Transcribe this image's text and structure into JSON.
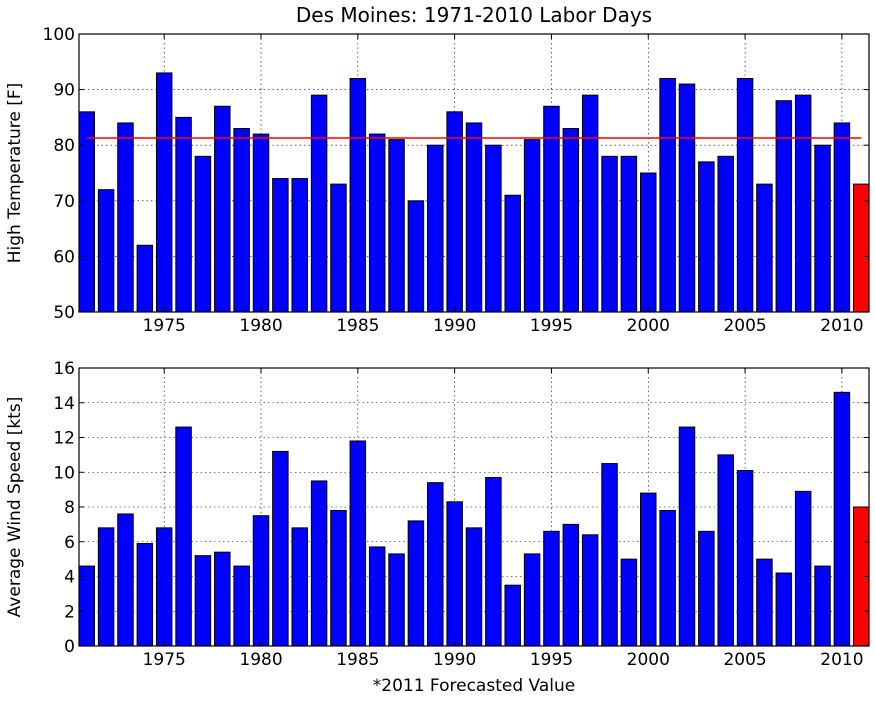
{
  "title": "Des Moines: 1971-2010 Labor Days",
  "footnote": "*2011 Forecasted Value",
  "colors": {
    "bar": "#0000ff",
    "forecast": "#ff0000",
    "mean_line": "#ff0000",
    "edge": "#000000"
  },
  "chart_data": [
    {
      "type": "bar",
      "ylabel": "High Temperature [F]",
      "xlabel": "",
      "ylim": [
        50,
        100
      ],
      "xlim": [
        1970.6,
        2011.4
      ],
      "grid": true,
      "yticks": [
        "50",
        "60",
        "70",
        "80",
        "90",
        "100"
      ],
      "xticks": [
        "1975",
        "1980",
        "1985",
        "1990",
        "1995",
        "2000",
        "2005",
        "2010"
      ],
      "x": [
        1971,
        1972,
        1973,
        1974,
        1975,
        1976,
        1977,
        1978,
        1979,
        1980,
        1981,
        1982,
        1983,
        1984,
        1985,
        1986,
        1987,
        1988,
        1989,
        1990,
        1991,
        1992,
        1993,
        1994,
        1995,
        1996,
        1997,
        1998,
        1999,
        2000,
        2001,
        2002,
        2003,
        2004,
        2005,
        2006,
        2007,
        2008,
        2009,
        2010
      ],
      "values": [
        86,
        72,
        84,
        62,
        93,
        85,
        78,
        87,
        83,
        82,
        74,
        74,
        89,
        73,
        92,
        82,
        81,
        70,
        80,
        86,
        84,
        80,
        71,
        81,
        87,
        83,
        89,
        78,
        78,
        75,
        92,
        91,
        77,
        78,
        92,
        73,
        88,
        89,
        80,
        84
      ],
      "forecast": {
        "x": 2011,
        "value": 73
      },
      "mean_line": {
        "value": 81.3,
        "x_range": [
          1971,
          2011
        ]
      }
    },
    {
      "type": "bar",
      "ylabel": "Average Wind Speed [kts]",
      "xlabel": "",
      "ylim": [
        0,
        16
      ],
      "xlim": [
        1970.6,
        2011.4
      ],
      "grid": true,
      "yticks": [
        "0",
        "2",
        "4",
        "6",
        "8",
        "10",
        "12",
        "14",
        "16"
      ],
      "xticks": [
        "1975",
        "1980",
        "1985",
        "1990",
        "1995",
        "2000",
        "2005",
        "2010"
      ],
      "x": [
        1971,
        1972,
        1973,
        1974,
        1975,
        1976,
        1977,
        1978,
        1979,
        1980,
        1981,
        1982,
        1983,
        1984,
        1985,
        1986,
        1987,
        1988,
        1989,
        1990,
        1991,
        1992,
        1993,
        1994,
        1995,
        1996,
        1997,
        1998,
        1999,
        2000,
        2001,
        2002,
        2003,
        2004,
        2005,
        2006,
        2007,
        2008,
        2009,
        2010
      ],
      "values": [
        4.6,
        6.8,
        7.6,
        5.9,
        6.8,
        12.6,
        5.2,
        5.4,
        4.6,
        7.5,
        11.2,
        6.8,
        9.5,
        7.8,
        11.8,
        5.7,
        5.3,
        7.2,
        9.4,
        8.3,
        6.8,
        9.7,
        3.5,
        5.3,
        6.6,
        7.0,
        6.4,
        10.5,
        5.0,
        8.8,
        7.8,
        12.6,
        6.6,
        11.0,
        10.1,
        5.0,
        4.2,
        8.9,
        4.6,
        14.6
      ],
      "forecast": {
        "x": 2011,
        "value": 8.0
      }
    }
  ]
}
